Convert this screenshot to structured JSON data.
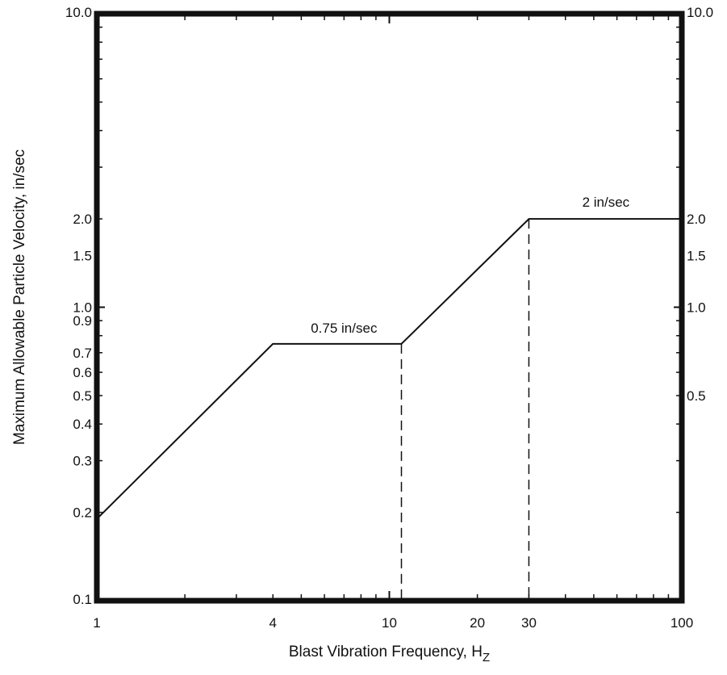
{
  "chart_data": {
    "type": "line",
    "title": "",
    "xlabel": "Blast Vibration Frequency, H",
    "xlabel_subscript": "Z",
    "ylabel": "Maximum Allowable Particle Velocity, in/sec",
    "x_scale": "log",
    "y_scale": "log",
    "xlim": [
      1,
      100
    ],
    "ylim": [
      0.1,
      10.0
    ],
    "grid": false,
    "x_ticks_labeled": [
      {
        "value": 1,
        "label": "1"
      },
      {
        "value": 4,
        "label": "4"
      },
      {
        "value": 10,
        "label": "10"
      },
      {
        "value": 20,
        "label": "20"
      },
      {
        "value": 30,
        "label": "30"
      },
      {
        "value": 100,
        "label": "100"
      }
    ],
    "y_ticks_left": [
      {
        "value": 10.0,
        "label": "10.0"
      },
      {
        "value": 2.0,
        "label": "2.0"
      },
      {
        "value": 1.5,
        "label": "1.5"
      },
      {
        "value": 1.0,
        "label": "1.0"
      },
      {
        "value": 0.9,
        "label": "0.9"
      },
      {
        "value": 0.7,
        "label": "0.7"
      },
      {
        "value": 0.6,
        "label": "0.6"
      },
      {
        "value": 0.5,
        "label": "0.5"
      },
      {
        "value": 0.4,
        "label": "0.4"
      },
      {
        "value": 0.3,
        "label": "0.3"
      },
      {
        "value": 0.2,
        "label": "0.2"
      },
      {
        "value": 0.1,
        "label": "0.1"
      }
    ],
    "y_ticks_right": [
      {
        "value": 10.0,
        "label": "10.0"
      },
      {
        "value": 2.0,
        "label": "2.0"
      },
      {
        "value": 1.5,
        "label": "1.5"
      },
      {
        "value": 1.0,
        "label": "1.0"
      },
      {
        "value": 0.5,
        "label": "0.5"
      }
    ],
    "series": [
      {
        "x": [
          1,
          4,
          11,
          30,
          100
        ],
        "y": [
          0.19,
          0.75,
          0.75,
          2.0,
          2.0
        ]
      }
    ],
    "vertical_dashed_lines": [
      11,
      30
    ],
    "annotations": [
      {
        "text": "0.75 in/sec",
        "x": 7,
        "y": 0.82
      },
      {
        "text": "2 in/sec",
        "x": 55,
        "y": 2.2
      }
    ]
  }
}
